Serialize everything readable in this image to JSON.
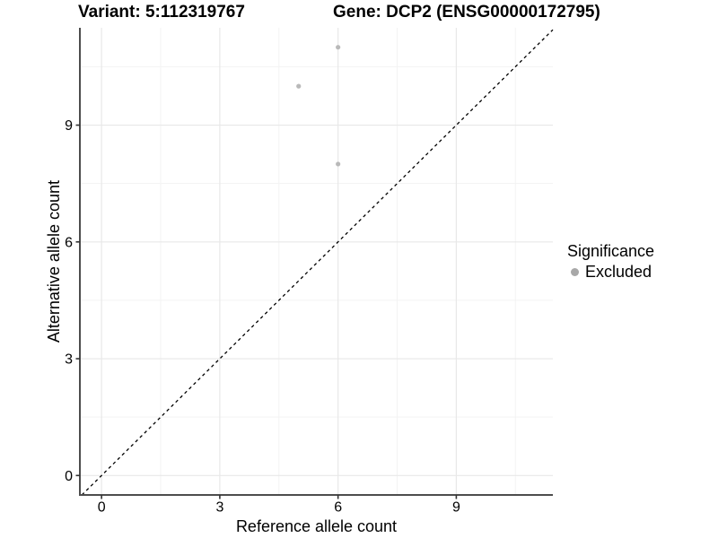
{
  "titles": {
    "variant": "Variant: 5:112319767",
    "gene": "Gene: DCP2 (ENSG00000172795)"
  },
  "chart_data": {
    "type": "scatter",
    "title_left": "Variant: 5:112319767",
    "title_right": "Gene: DCP2 (ENSG00000172795)",
    "xlabel": "Reference allele count",
    "ylabel": "Alternative allele count",
    "xlim": [
      -0.55,
      11.45
    ],
    "ylim": [
      -0.5,
      11.5
    ],
    "xticks": [
      0,
      3,
      6,
      9
    ],
    "yticks": [
      0,
      3,
      6,
      9
    ],
    "minor_xticks": [
      1.5,
      4.5,
      7.5,
      10.5
    ],
    "minor_yticks": [
      1.5,
      4.5,
      7.5,
      10.5
    ],
    "grid": "major-and-minor",
    "identity_line": {
      "type": "y=x",
      "style": "dashed",
      "color": "#000000"
    },
    "series": [
      {
        "name": "Excluded",
        "color": "#b9b9b9",
        "points": [
          [
            5,
            10
          ],
          [
            6,
            11
          ],
          [
            6,
            8
          ]
        ]
      }
    ],
    "legend": {
      "title": "Significance",
      "position": "right",
      "entries": [
        {
          "label": "Excluded",
          "color": "#a8a8a8"
        }
      ]
    }
  },
  "colors": {
    "background": "#ffffff",
    "major_grid": "#e8e8e8",
    "minor_grid": "#f3f3f3",
    "axis_line": "#4d4d4d",
    "tick_mark": "#333333",
    "tick_text": "#000000"
  }
}
